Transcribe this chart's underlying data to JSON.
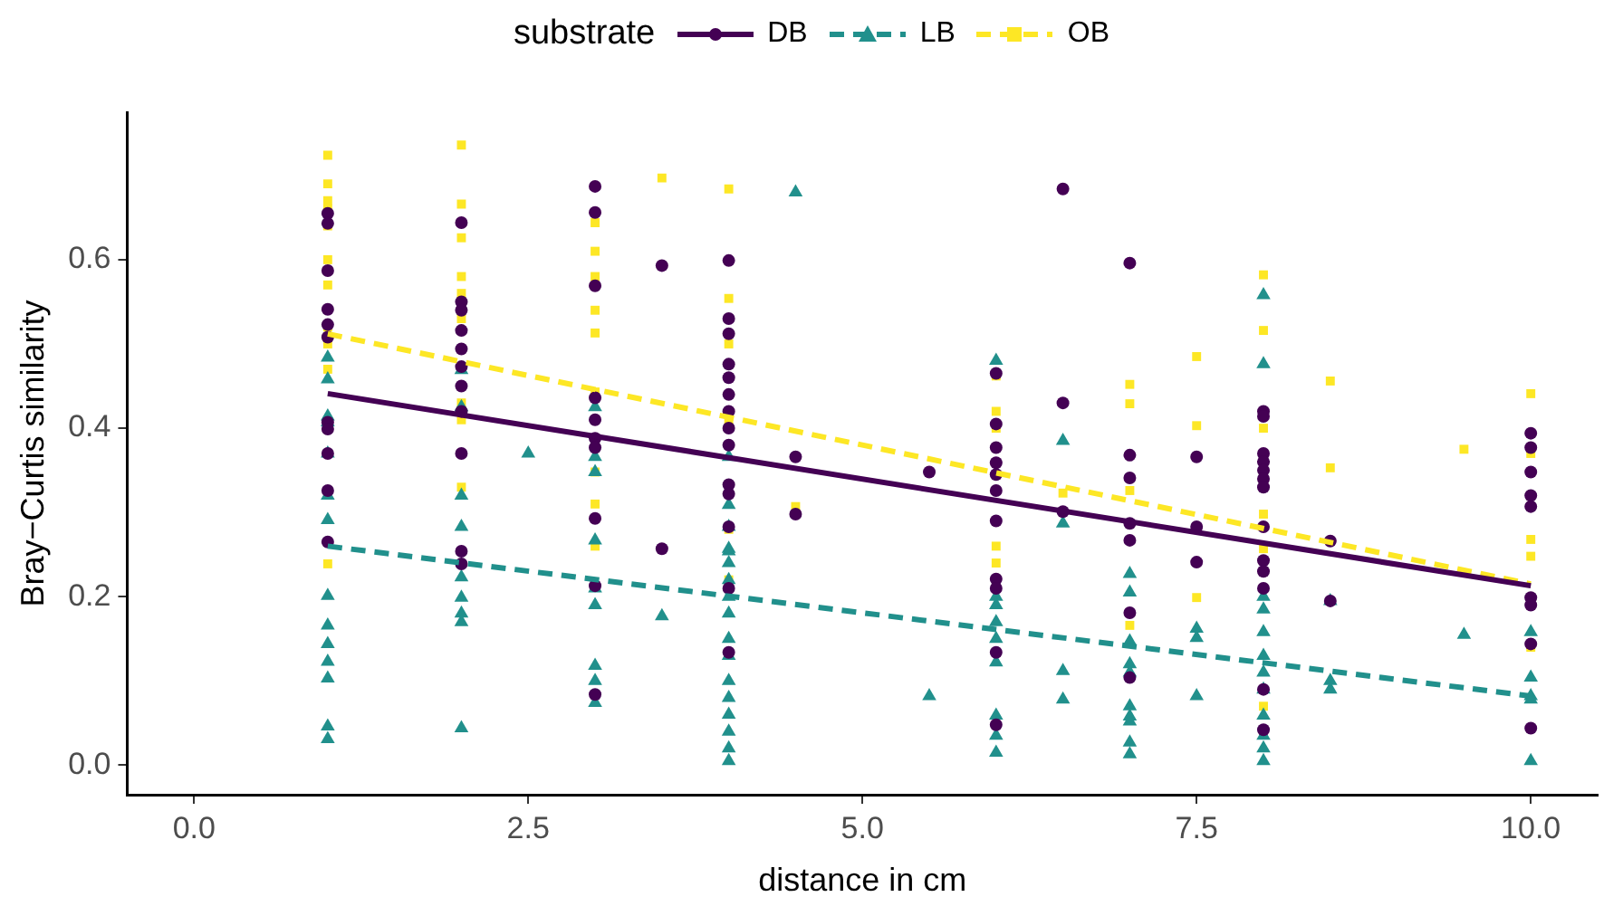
{
  "chart_data": {
    "type": "scatter",
    "xlabel": "distance in cm",
    "ylabel": "Bray−Curtis similarity",
    "legend_title": "substrate",
    "legend": "top",
    "grid": false,
    "xlim": [
      -0.5,
      10.5
    ],
    "xticks": [
      {
        "value": 0,
        "label": "0.0"
      },
      2.5,
      {
        "value": 5,
        "label": "5.0"
      },
      7.5,
      {
        "value": 10,
        "label": "10.0"
      }
    ],
    "ylim": [
      -0.035,
      0.775
    ],
    "yticks": [
      {
        "value": 0,
        "label": "0.0"
      },
      0.2,
      0.4,
      0.6
    ],
    "series": [
      {
        "name": "DB",
        "type": "scatter",
        "marker": "circle",
        "color": "#440154",
        "x": [
          1,
          1,
          1,
          1,
          1,
          1,
          1,
          1,
          1,
          1,
          1,
          2,
          2,
          2,
          2,
          2,
          2,
          2,
          2,
          2,
          2,
          2,
          3,
          3,
          3,
          3,
          3,
          3,
          3,
          3,
          3,
          3,
          3.5,
          3.5,
          4,
          4,
          4,
          4,
          4,
          4,
          4,
          4,
          4,
          4,
          4,
          4,
          4,
          4,
          4.5,
          4.5,
          5.5,
          6,
          6,
          6,
          6,
          6,
          6,
          6,
          6,
          6,
          6,
          6,
          6.5,
          6.5,
          6.5,
          7,
          7,
          7,
          7,
          7,
          7,
          7,
          7.5,
          7.5,
          7.5,
          8,
          8,
          8,
          8,
          8,
          8,
          8,
          8,
          8,
          8,
          8,
          8,
          8,
          8.5,
          8.5,
          10,
          10,
          10,
          10,
          10,
          10,
          10,
          10,
          10
        ],
        "values": [
          0.655,
          0.643,
          0.587,
          0.541,
          0.523,
          0.508,
          0.407,
          0.399,
          0.37,
          0.326,
          0.265,
          0.644,
          0.55,
          0.54,
          0.516,
          0.494,
          0.473,
          0.45,
          0.42,
          0.37,
          0.254,
          0.239,
          0.687,
          0.656,
          0.569,
          0.436,
          0.41,
          0.388,
          0.377,
          0.293,
          0.213,
          0.084,
          0.593,
          0.257,
          0.599,
          0.53,
          0.512,
          0.476,
          0.46,
          0.44,
          0.42,
          0.4,
          0.38,
          0.333,
          0.322,
          0.283,
          0.21,
          0.134,
          0.366,
          0.298,
          0.348,
          0.465,
          0.405,
          0.377,
          0.359,
          0.345,
          0.326,
          0.29,
          0.221,
          0.21,
          0.134,
          0.048,
          0.684,
          0.43,
          0.301,
          0.596,
          0.368,
          0.341,
          0.287,
          0.267,
          0.181,
          0.104,
          0.366,
          0.283,
          0.241,
          0.42,
          0.414,
          0.37,
          0.36,
          0.35,
          0.34,
          0.33,
          0.283,
          0.243,
          0.23,
          0.21,
          0.09,
          0.042,
          0.266,
          0.195,
          0.394,
          0.377,
          0.348,
          0.32,
          0.307,
          0.199,
          0.19,
          0.144,
          0.044
        ]
      },
      {
        "name": "LB",
        "type": "scatter",
        "marker": "triangle",
        "color": "#21908c",
        "x": [
          1,
          1,
          1,
          1,
          1,
          1,
          1,
          1,
          1,
          1,
          1,
          1,
          1,
          1,
          2,
          2,
          2,
          2,
          2,
          2,
          2,
          2,
          2,
          2.5,
          3,
          3,
          3,
          3,
          3,
          3,
          3,
          3,
          3,
          3.5,
          4,
          4,
          4,
          4,
          4,
          4,
          4,
          4,
          4,
          4,
          4,
          4,
          4,
          4,
          4,
          4,
          4,
          4.5,
          5.5,
          6,
          6,
          6,
          6,
          6,
          6,
          6,
          6,
          6,
          6.5,
          6.5,
          6.5,
          6.5,
          7,
          7,
          7,
          7,
          7,
          7,
          7,
          7,
          7,
          7,
          7.5,
          7.5,
          7.5,
          8,
          8,
          8,
          8,
          8,
          8,
          8,
          8,
          8,
          8,
          8,
          8,
          8.5,
          8.5,
          8.5,
          9.5,
          10,
          10,
          10,
          10,
          10
        ],
        "values": [
          0.484,
          0.458,
          0.414,
          0.407,
          0.37,
          0.32,
          0.291,
          0.201,
          0.166,
          0.144,
          0.123,
          0.103,
          0.046,
          0.031,
          0.469,
          0.425,
          0.32,
          0.283,
          0.223,
          0.199,
          0.18,
          0.17,
          0.044,
          0.37,
          0.425,
          0.366,
          0.348,
          0.267,
          0.21,
          0.19,
          0.118,
          0.1,
          0.074,
          0.177,
          0.366,
          0.309,
          0.283,
          0.254,
          0.24,
          0.22,
          0.2,
          0.18,
          0.15,
          0.13,
          0.1,
          0.08,
          0.06,
          0.04,
          0.02,
          0.005,
          0.257,
          0.68,
          0.082,
          0.48,
          0.2,
          0.19,
          0.17,
          0.15,
          0.122,
          0.059,
          0.035,
          0.015,
          0.385,
          0.287,
          0.112,
          0.078,
          0.227,
          0.205,
          0.147,
          0.12,
          0.11,
          0.07,
          0.052,
          0.027,
          0.013,
          0.058,
          0.162,
          0.151,
          0.082,
          0.558,
          0.476,
          0.2,
          0.185,
          0.158,
          0.13,
          0.11,
          0.09,
          0.059,
          0.035,
          0.02,
          0.005,
          0.195,
          0.1,
          0.09,
          0.155,
          0.158,
          0.104,
          0.082,
          0.078,
          0.005
        ]
      },
      {
        "name": "OB",
        "type": "scatter",
        "marker": "square",
        "color": "#fde725",
        "x": [
          1,
          1,
          1,
          1,
          1,
          1,
          1,
          1,
          1,
          1,
          1,
          2,
          2,
          2,
          2,
          2,
          2,
          2,
          2,
          2,
          3,
          3,
          3,
          3,
          3,
          3,
          3,
          3,
          3,
          3.5,
          4,
          4,
          4,
          4,
          4,
          4,
          4.5,
          6,
          6,
          6,
          6,
          6,
          6.5,
          7,
          7,
          7,
          7,
          7.5,
          7.5,
          7.5,
          8,
          8,
          8,
          8,
          8,
          8,
          8.5,
          8.5,
          9.5,
          10,
          10,
          10,
          10,
          10
        ],
        "values": [
          0.724,
          0.69,
          0.67,
          0.6,
          0.57,
          0.52,
          0.5,
          0.47,
          0.239,
          0.66,
          0.64,
          0.736,
          0.666,
          0.626,
          0.58,
          0.56,
          0.53,
          0.43,
          0.41,
          0.33,
          0.644,
          0.61,
          0.58,
          0.54,
          0.513,
          0.443,
          0.348,
          0.31,
          0.26,
          0.697,
          0.684,
          0.554,
          0.5,
          0.41,
          0.28,
          0.22,
          0.307,
          0.462,
          0.42,
          0.4,
          0.26,
          0.24,
          0.323,
          0.452,
          0.429,
          0.326,
          0.166,
          0.485,
          0.403,
          0.199,
          0.582,
          0.516,
          0.4,
          0.298,
          0.257,
          0.07,
          0.456,
          0.353,
          0.375,
          0.441,
          0.37,
          0.268,
          0.248,
          0.14
        ]
      },
      {
        "type": "line",
        "color": "#440154",
        "line_style": "solid",
        "marker": "none",
        "x": [
          1,
          10
        ],
        "values": [
          0.441,
          0.213
        ]
      },
      {
        "type": "line",
        "color": "#21908c",
        "line_style": "dashed",
        "marker": "none",
        "x": [
          1,
          10
        ],
        "values": [
          0.26,
          0.082
        ]
      },
      {
        "type": "line",
        "color": "#fde725",
        "line_style": "dashed",
        "marker": "none",
        "x": [
          1,
          10
        ],
        "values": [
          0.512,
          0.215
        ]
      }
    ]
  }
}
